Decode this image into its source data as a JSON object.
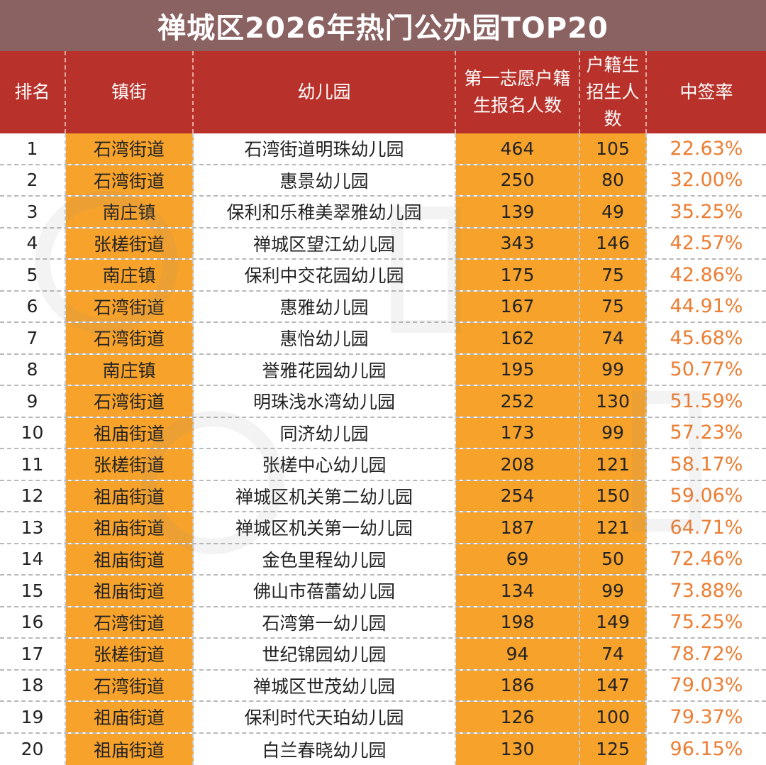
{
  "title": "禅城区2026年热门公办园TOP20",
  "colors": {
    "title_bg": "#8b6262",
    "header_bg": "#b8312a",
    "highlight": "#f7a22a",
    "rate_text": "#ec7d32"
  },
  "headers": {
    "rank": "排名",
    "town": "镇街",
    "kindergarten": "幼儿园",
    "first_choice_line1": "第一志愿户籍",
    "first_choice_line2": "生报名人数",
    "quota_line1": "户籍生",
    "quota_line2": "招生人",
    "quota_line3": "数",
    "rate": "中签率"
  },
  "rows": [
    {
      "rank": "1",
      "town": "石湾街道",
      "name": "石湾街道明珠幼儿园",
      "applicants": "464",
      "quota": "105",
      "rate": "22.63%"
    },
    {
      "rank": "2",
      "town": "石湾街道",
      "name": "惠景幼儿园",
      "applicants": "250",
      "quota": "80",
      "rate": "32.00%"
    },
    {
      "rank": "3",
      "town": "南庄镇",
      "name": "保利和乐稚美翠雅幼儿园",
      "applicants": "139",
      "quota": "49",
      "rate": "35.25%"
    },
    {
      "rank": "4",
      "town": "张槎街道",
      "name": "禅城区望江幼儿园",
      "applicants": "343",
      "quota": "146",
      "rate": "42.57%"
    },
    {
      "rank": "5",
      "town": "南庄镇",
      "name": "保利中交花园幼儿园",
      "applicants": "175",
      "quota": "75",
      "rate": "42.86%"
    },
    {
      "rank": "6",
      "town": "石湾街道",
      "name": "惠雅幼儿园",
      "applicants": "167",
      "quota": "75",
      "rate": "44.91%"
    },
    {
      "rank": "7",
      "town": "石湾街道",
      "name": "惠怡幼儿园",
      "applicants": "162",
      "quota": "74",
      "rate": "45.68%"
    },
    {
      "rank": "8",
      "town": "南庄镇",
      "name": "誉雅花园幼儿园",
      "applicants": "195",
      "quota": "99",
      "rate": "50.77%"
    },
    {
      "rank": "9",
      "town": "石湾街道",
      "name": "明珠浅水湾幼儿园",
      "applicants": "252",
      "quota": "130",
      "rate": "51.59%"
    },
    {
      "rank": "10",
      "town": "祖庙街道",
      "name": "同济幼儿园",
      "applicants": "173",
      "quota": "99",
      "rate": "57.23%"
    },
    {
      "rank": "11",
      "town": "张槎街道",
      "name": "张槎中心幼儿园",
      "applicants": "208",
      "quota": "121",
      "rate": "58.17%"
    },
    {
      "rank": "12",
      "town": "祖庙街道",
      "name": "禅城区机关第二幼儿园",
      "applicants": "254",
      "quota": "150",
      "rate": "59.06%"
    },
    {
      "rank": "13",
      "town": "祖庙街道",
      "name": "禅城区机关第一幼儿园",
      "applicants": "187",
      "quota": "121",
      "rate": "64.71%"
    },
    {
      "rank": "14",
      "town": "祖庙街道",
      "name": "金色里程幼儿园",
      "applicants": "69",
      "quota": "50",
      "rate": "72.46%"
    },
    {
      "rank": "15",
      "town": "祖庙街道",
      "name": "佛山市蓓蕾幼儿园",
      "applicants": "134",
      "quota": "99",
      "rate": "73.88%"
    },
    {
      "rank": "16",
      "town": "石湾街道",
      "name": "石湾第一幼儿园",
      "applicants": "198",
      "quota": "149",
      "rate": "75.25%"
    },
    {
      "rank": "17",
      "town": "张槎街道",
      "name": "世纪锦园幼儿园",
      "applicants": "94",
      "quota": "74",
      "rate": "78.72%"
    },
    {
      "rank": "18",
      "town": "石湾街道",
      "name": "禅城区世茂幼儿园",
      "applicants": "186",
      "quota": "147",
      "rate": "79.03%"
    },
    {
      "rank": "19",
      "town": "祖庙街道",
      "name": "保利时代天珀幼儿园",
      "applicants": "126",
      "quota": "100",
      "rate": "79.37%"
    },
    {
      "rank": "20",
      "town": "祖庙街道",
      "name": "白兰春晓幼儿园",
      "applicants": "130",
      "quota": "125",
      "rate": "96.15%"
    }
  ]
}
